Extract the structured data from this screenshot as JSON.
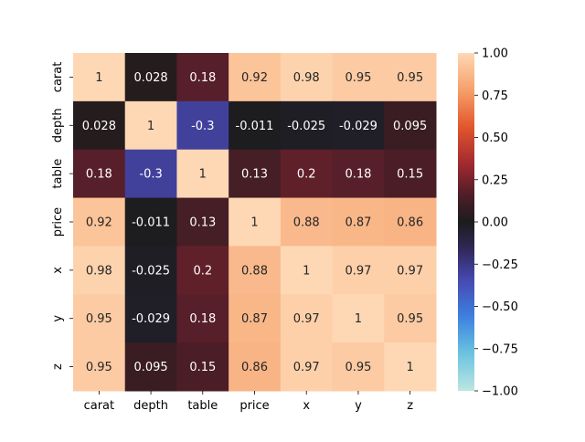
{
  "chart_data": {
    "type": "heatmap",
    "title": "",
    "xlabel": "",
    "ylabel": "",
    "x_labels": [
      "carat",
      "depth",
      "table",
      "price",
      "x",
      "y",
      "z"
    ],
    "y_labels": [
      "carat",
      "depth",
      "table",
      "price",
      "x",
      "y",
      "z"
    ],
    "values": [
      [
        1,
        0.028,
        0.18,
        0.92,
        0.98,
        0.95,
        0.95
      ],
      [
        0.028,
        1,
        -0.3,
        -0.011,
        -0.025,
        -0.029,
        0.095
      ],
      [
        0.18,
        -0.3,
        1,
        0.13,
        0.2,
        0.18,
        0.15
      ],
      [
        0.92,
        -0.011,
        0.13,
        1,
        0.88,
        0.87,
        0.86
      ],
      [
        0.98,
        -0.025,
        0.2,
        0.88,
        1,
        0.97,
        0.97
      ],
      [
        0.95,
        -0.029,
        0.18,
        0.87,
        0.97,
        1,
        0.95
      ],
      [
        0.95,
        0.095,
        0.15,
        0.86,
        0.97,
        0.95,
        1
      ]
    ],
    "annotations": [
      [
        "1",
        "0.028",
        "0.18",
        "0.92",
        "0.98",
        "0.95",
        "0.95"
      ],
      [
        "0.028",
        "1",
        "-0.3",
        "-0.011",
        "-0.025",
        "-0.029",
        "0.095"
      ],
      [
        "0.18",
        "-0.3",
        "1",
        "0.13",
        "0.2",
        "0.18",
        "0.15"
      ],
      [
        "0.92",
        "-0.011",
        "0.13",
        "1",
        "0.88",
        "0.87",
        "0.86"
      ],
      [
        "0.98",
        "-0.025",
        "0.2",
        "0.88",
        "1",
        "0.97",
        "0.97"
      ],
      [
        "0.95",
        "-0.029",
        "0.18",
        "0.87",
        "0.97",
        "1",
        "0.95"
      ],
      [
        "0.95",
        "0.095",
        "0.15",
        "0.86",
        "0.97",
        "0.95",
        "1"
      ]
    ],
    "vmin": -1,
    "vmax": 1,
    "colormap": "icefire",
    "colorbar": {
      "ticks": [
        1.0,
        0.75,
        0.5,
        0.25,
        0.0,
        -0.25,
        -0.5,
        -0.75,
        -1.0
      ],
      "tick_labels": [
        "1.00",
        "0.75",
        "0.50",
        "0.25",
        "0.00",
        "−0.25",
        "−0.50",
        "−0.75",
        "−1.00"
      ]
    },
    "grid": false,
    "legend": "none"
  }
}
